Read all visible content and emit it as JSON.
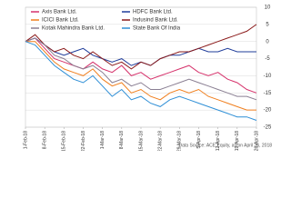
{
  "chart_data": {
    "type": "line",
    "source": "Data Source: ACE Equity, as on April 26, 2018",
    "categories": [
      "1-Feb-18",
      null,
      "8-Feb-18",
      null,
      "15-Feb-18",
      null,
      "22-Feb-18",
      null,
      "1-Mar-18",
      null,
      "8-Mar-18",
      null,
      "15-Mar-18",
      null,
      "22-Mar-18",
      null,
      "29-Mar-18",
      null,
      "5-Apr-18",
      null,
      "12-Apr-18",
      null,
      "19-Apr-18",
      null,
      "26-Apr-18"
    ],
    "series": [
      {
        "name": "Axis Bank Ltd.",
        "color": "#d6336c",
        "values": [
          0,
          1,
          -2,
          -5,
          -6,
          -7,
          -8,
          -6,
          -8,
          -9,
          -7,
          -10,
          -9,
          -11,
          -10,
          -9,
          -8,
          -7,
          -9,
          -10,
          -9,
          -11,
          -12,
          -14,
          -15
        ]
      },
      {
        "name": "HDFC Bank Ltd.",
        "color": "#1f3c9a",
        "values": [
          0,
          1,
          -1,
          -3,
          -4,
          -3,
          -2,
          -4,
          -5,
          -6,
          -5,
          -7,
          -6,
          -7,
          -5,
          -4,
          -4,
          -3,
          -2,
          -3,
          -3,
          -2,
          -3,
          -3,
          -3
        ]
      },
      {
        "name": "ICICI Bank Ltd.",
        "color": "#f07f1e",
        "values": [
          0,
          0,
          -3,
          -6,
          -8,
          -9,
          -10,
          -8,
          -11,
          -13,
          -12,
          -15,
          -14,
          -16,
          -17,
          -15,
          -14,
          -15,
          -14,
          -16,
          -17,
          -18,
          -19,
          -20,
          -20
        ]
      },
      {
        "name": "Indusind Bank Ltd.",
        "color": "#8b1a1a",
        "values": [
          0,
          2,
          -1,
          -3,
          -2,
          -4,
          -5,
          -3,
          -5,
          -7,
          -6,
          -8,
          -6,
          -7,
          -5,
          -4,
          -3,
          -3,
          -2,
          -1,
          0,
          1,
          2,
          3,
          5
        ]
      },
      {
        "name": "Kotak Mahindra Bank Ltd.",
        "color": "#8a7f93",
        "values": [
          0,
          1,
          -1,
          -4,
          -5,
          -7,
          -8,
          -7,
          -9,
          -12,
          -11,
          -13,
          -12,
          -14,
          -14,
          -13,
          -12,
          -11,
          -12,
          -13,
          -14,
          -15,
          -16,
          -16,
          -17
        ]
      },
      {
        "name": "State Bank Of India",
        "color": "#2f8fd6",
        "values": [
          0,
          -1,
          -4,
          -7,
          -9,
          -11,
          -12,
          -10,
          -13,
          -16,
          -14,
          -17,
          -16,
          -18,
          -19,
          -17,
          -16,
          -17,
          -18,
          -19,
          -20,
          -21,
          -22,
          -22,
          -23
        ]
      }
    ],
    "ylim": [
      -25,
      10
    ],
    "yticks": [
      10,
      5,
      0,
      -5,
      -10,
      -15,
      -20,
      -25
    ],
    "grid": true
  }
}
